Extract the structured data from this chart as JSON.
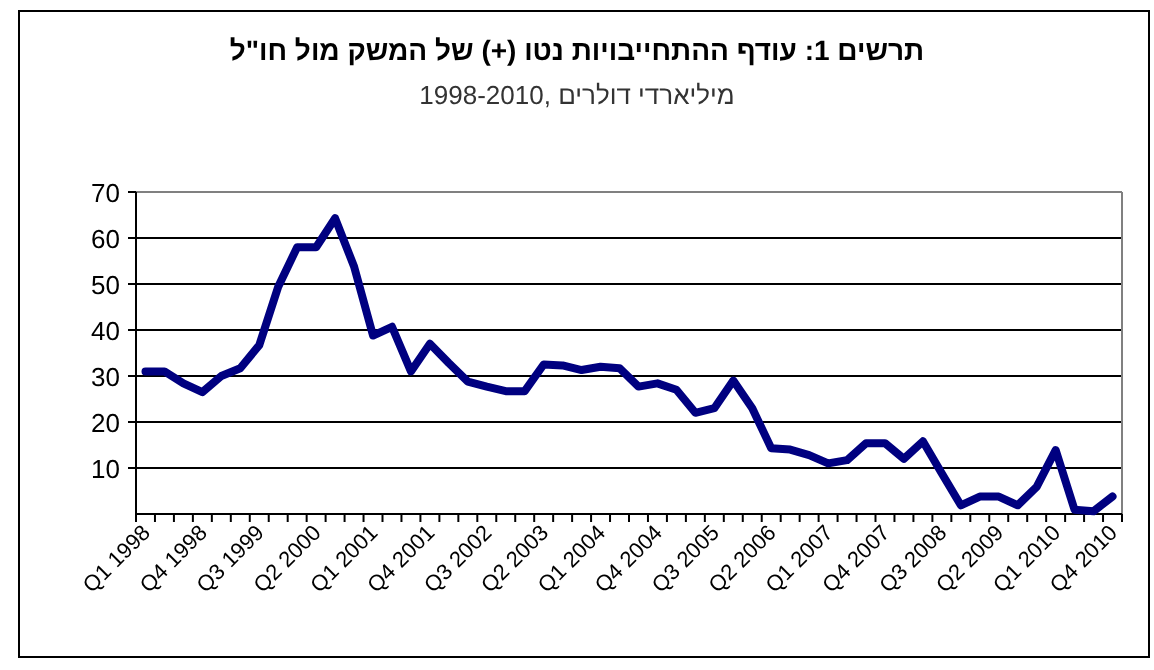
{
  "chart_data": {
    "type": "line",
    "title": "תרשים 1: עודף ההתחייבויות נטו (+) של המשק מול חו\"ל",
    "subtitle": "1998-2010, מיליארדי דולרים",
    "categories": [
      "Q1 1998",
      null,
      null,
      "Q4 1998",
      null,
      null,
      "Q3 1999",
      null,
      null,
      "Q2 2000",
      null,
      null,
      "Q1 2001",
      null,
      null,
      "Q4 2001",
      null,
      null,
      "Q3 2002",
      null,
      null,
      "Q2 2003",
      null,
      null,
      "Q1 2004",
      null,
      null,
      "Q4 2004",
      null,
      null,
      "Q3 2005",
      null,
      null,
      "Q2 2006",
      null,
      null,
      "Q1 2007",
      null,
      null,
      "Q4 2007",
      null,
      null,
      "Q3 2008",
      null,
      null,
      "Q2 2009",
      null,
      null,
      "Q1 2010",
      null,
      null,
      "Q4 2010"
    ],
    "series": [
      {
        "color": "#000080",
        "values": [
          31,
          31,
          28.4,
          26.5,
          30,
          31.7,
          36.7,
          49.4,
          58,
          58,
          64.3,
          53.8,
          38.8,
          40.7,
          31,
          37,
          32.8,
          28.8,
          27.7,
          26.7,
          26.7,
          32.5,
          32.3,
          31.3,
          32,
          31.7,
          27.7,
          28.4,
          27,
          22,
          23,
          29,
          23,
          14.3,
          14,
          12.8,
          11,
          11.7,
          15.4,
          15.4,
          12,
          15.8,
          8.8,
          1.9,
          3.8,
          3.8,
          1.9,
          5.9,
          13.9,
          0.9,
          0.6,
          3.8
        ]
      }
    ],
    "ylim": [
      0,
      70
    ],
    "yticks": [
      10,
      20,
      30,
      40,
      50,
      60,
      70
    ],
    "grid": "y",
    "marker": "none",
    "line_style": "solid"
  }
}
